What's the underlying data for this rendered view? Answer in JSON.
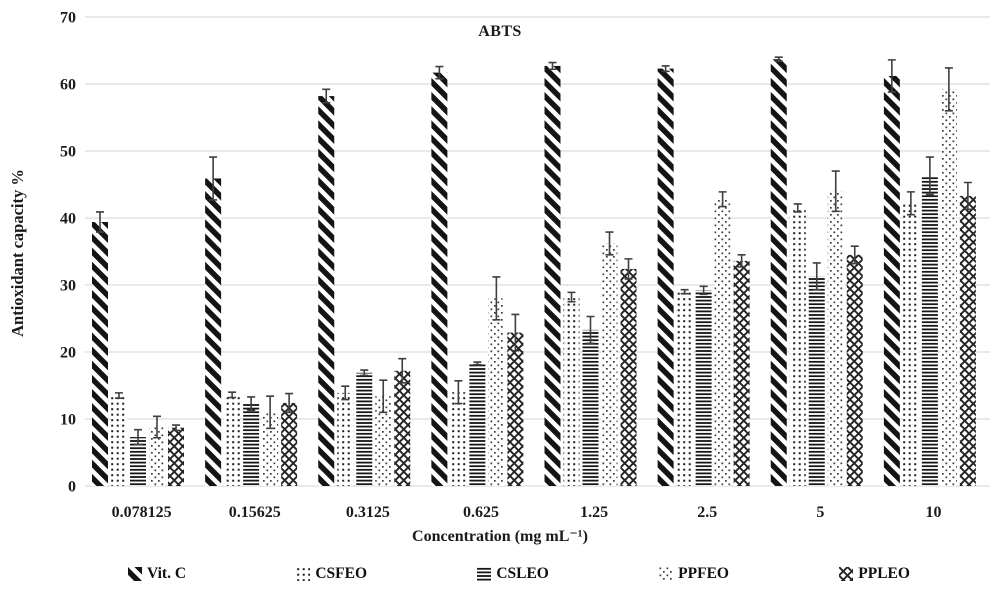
{
  "colors": {
    "background": "#ffffff",
    "ink": "#1a1a1a",
    "grid": "#dde3e0",
    "error_bar": "#3f3f3f"
  },
  "chart_data": {
    "type": "bar",
    "title": "ABTS",
    "xlabel": "Concentration (mg mL⁻¹)",
    "ylabel": "Antioxidant capacity %",
    "ylim": [
      0,
      70
    ],
    "yticks": [
      0,
      10,
      20,
      30,
      40,
      50,
      60,
      70
    ],
    "grid": true,
    "legend_position": "bottom",
    "categories": [
      "0.078125",
      "0.15625",
      "0.3125",
      "0.625",
      "1.25",
      "2.5",
      "5",
      "10"
    ],
    "series": [
      {
        "name": "Vit. C",
        "pattern": "diagonal-stripes",
        "values": [
          39.4,
          45.9,
          58.2,
          61.7,
          62.7,
          62.3,
          63.7,
          61.2
        ],
        "errors": [
          1.5,
          3.2,
          1.0,
          0.9,
          0.5,
          0.4,
          0.3,
          2.4
        ]
      },
      {
        "name": "CSFEO",
        "pattern": "dots-grid",
        "values": [
          13.5,
          13.6,
          13.9,
          14.0,
          28.2,
          29.0,
          41.5,
          42.2
        ],
        "errors": [
          0.4,
          0.4,
          1.0,
          1.7,
          0.7,
          0.3,
          0.6,
          1.7
        ]
      },
      {
        "name": "CSLEO",
        "pattern": "horizontal-lines",
        "values": [
          7.3,
          12.3,
          16.9,
          18.3,
          23.3,
          29.2,
          31.3,
          46.3
        ],
        "errors": [
          1.1,
          1.0,
          0.4,
          0.2,
          2.0,
          0.6,
          2.0,
          2.8
        ]
      },
      {
        "name": "PPFEO",
        "pattern": "dot-lattice",
        "values": [
          8.8,
          11.0,
          13.4,
          28.0,
          36.2,
          42.8,
          44.0,
          59.2
        ],
        "errors": [
          1.6,
          2.4,
          2.4,
          3.2,
          1.7,
          1.1,
          3.0,
          3.2
        ]
      },
      {
        "name": "PPLEO",
        "pattern": "crosshatch",
        "values": [
          8.7,
          12.4,
          17.2,
          22.9,
          32.4,
          33.6,
          34.5,
          43.3
        ],
        "errors": [
          0.4,
          1.4,
          1.8,
          2.7,
          1.5,
          0.9,
          1.3,
          2.0
        ]
      }
    ]
  }
}
